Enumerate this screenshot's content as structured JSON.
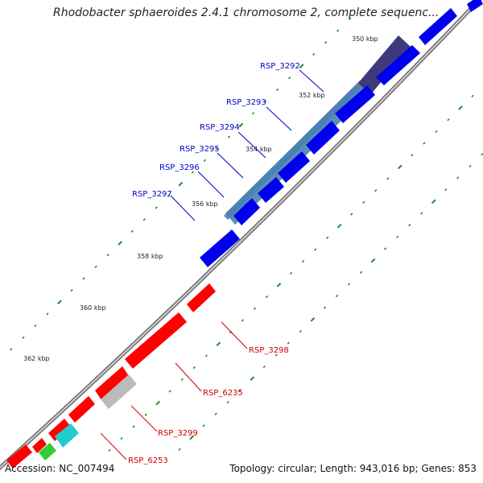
{
  "title": "Rhodobacter sphaeroides 2.4.1 chromosome 2, complete sequenc...",
  "footer": {
    "accession": "Accession: NC_007494",
    "summary": "Topology: circular; Length: 943,016 bp; Genes: 853"
  },
  "colors": {
    "forward": "#0000ee",
    "reverse": "#ff0000",
    "highlight": "#4a7fb0",
    "highlight_dark": "#3c3a7a",
    "label_forward": "#0000cc",
    "label_reverse": "#cc0000",
    "ticks": "#228b22"
  },
  "kbp_labels": [
    "350 kbp",
    "352 kbp",
    "354 kbp",
    "356 kbp",
    "358 kbp",
    "360 kbp",
    "362 kbp"
  ],
  "forward_genes": [
    "RSP_3292",
    "RSP_3293",
    "RSP_3294",
    "RSP_3295",
    "RSP_3296",
    "RSP_3297"
  ],
  "reverse_genes": [
    "RSP_3298",
    "RSP_6235",
    "RSP_3299",
    "RSP_6253"
  ]
}
